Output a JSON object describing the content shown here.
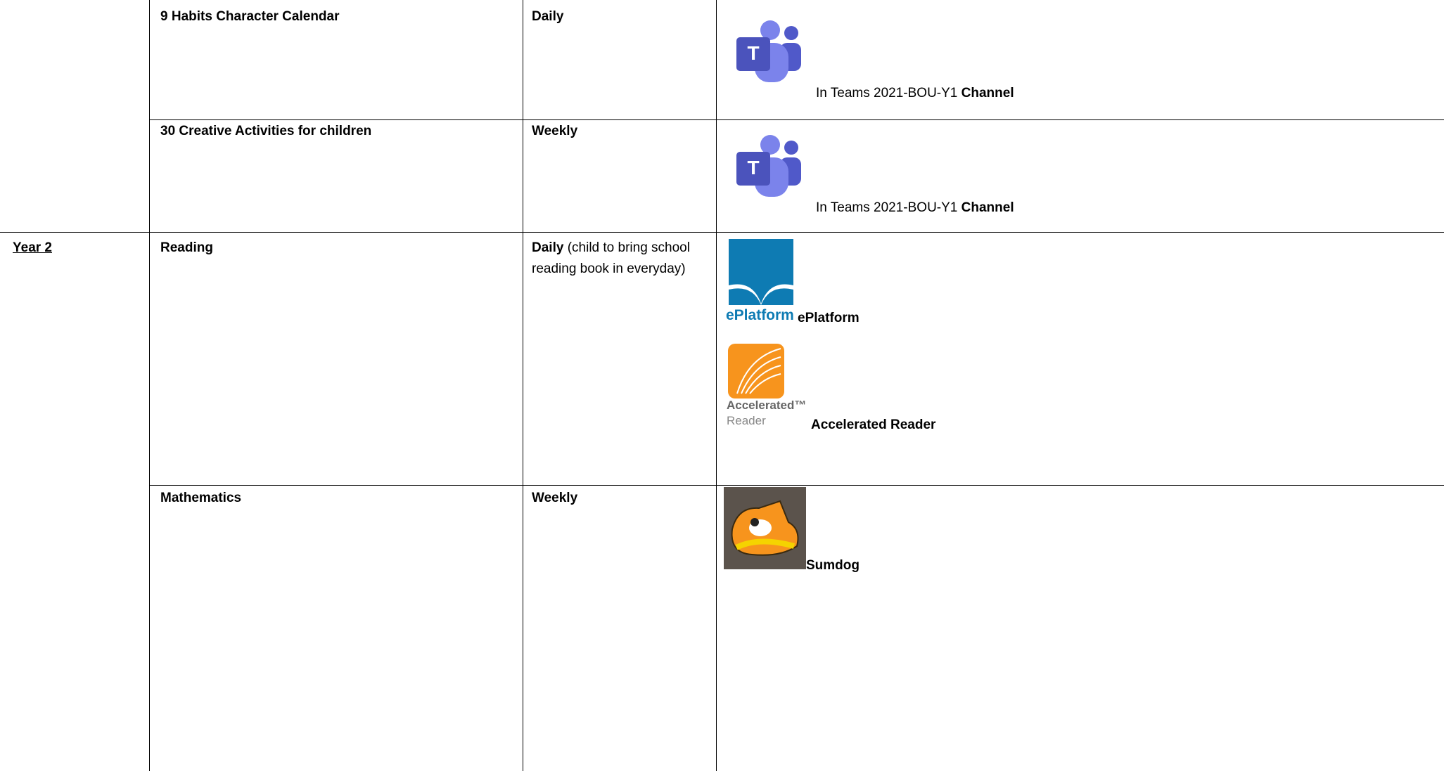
{
  "table": {
    "rows": [
      {
        "activity": "9 Habits Character Calendar",
        "frequency": "Daily",
        "resources": [
          {
            "logo_text": "T",
            "label": "In Teams 2021-BOU-Y1",
            "label_bold": "Channel"
          }
        ]
      },
      {
        "activity": "30 Creative Activities for children",
        "frequency": "Weekly",
        "resources": [
          {
            "logo_text": "T",
            "label": "In Teams 2021-BOU-Y1",
            "label_bold": "Channel"
          }
        ]
      },
      {
        "year": "Year 2",
        "activity": "Reading",
        "frequency": "Daily",
        "frequency_note": "(child to bring school reading book in everyday)",
        "resources": [
          {
            "logo_text": "ePlatform",
            "label": "ePlatform"
          },
          {
            "logo_text": "Accelerated™",
            "logo_subtext": "Reader",
            "label": "Accelerated Reader"
          }
        ]
      },
      {
        "activity": "Mathematics",
        "frequency": "Weekly",
        "resources": [
          {
            "label": "Sumdog"
          }
        ]
      }
    ]
  }
}
